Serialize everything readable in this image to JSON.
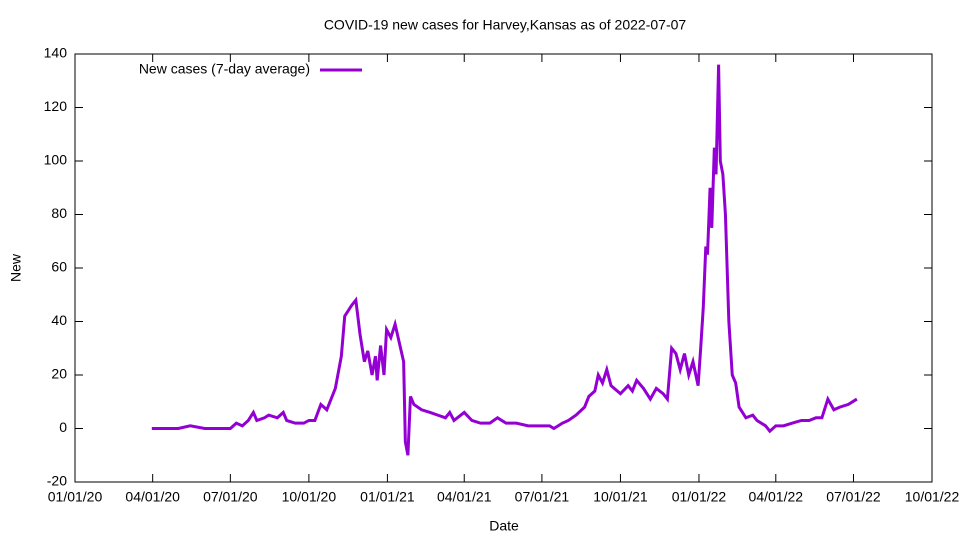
{
  "chart_data": {
    "type": "line",
    "title": "COVID-19 new cases for Harvey,Kansas as of 2022-07-07",
    "x_label": "Date",
    "y_label": "New",
    "legend": "top-left",
    "xlim": [
      "2020-01-01",
      "2022-10-01"
    ],
    "xticks": [
      {
        "value": "2020-01-01",
        "label": "01/01/20"
      },
      {
        "value": "2020-04-01",
        "label": "04/01/20"
      },
      {
        "value": "2020-07-01",
        "label": "07/01/20"
      },
      {
        "value": "2020-10-01",
        "label": "10/01/20"
      },
      {
        "value": "2021-01-01",
        "label": "01/01/21"
      },
      {
        "value": "2021-04-01",
        "label": "04/01/21"
      },
      {
        "value": "2021-07-01",
        "label": "07/01/21"
      },
      {
        "value": "2021-10-01",
        "label": "10/01/21"
      },
      {
        "value": "2022-01-01",
        "label": "01/01/22"
      },
      {
        "value": "2022-04-01",
        "label": "04/01/22"
      },
      {
        "value": "2022-07-01",
        "label": "07/01/22"
      },
      {
        "value": "2022-10-01",
        "label": "10/01/22"
      }
    ],
    "ylim": [
      -20,
      140
    ],
    "yticks": [
      -20,
      0,
      20,
      40,
      60,
      80,
      100,
      120,
      140
    ],
    "x": [
      "2020-03-31",
      "2020-04-15",
      "2020-05-01",
      "2020-05-15",
      "2020-06-01",
      "2020-06-15",
      "2020-07-01",
      "2020-07-08",
      "2020-07-15",
      "2020-07-22",
      "2020-07-28",
      "2020-08-01",
      "2020-08-10",
      "2020-08-15",
      "2020-08-25",
      "2020-09-01",
      "2020-09-05",
      "2020-09-15",
      "2020-09-25",
      "2020-10-01",
      "2020-10-08",
      "2020-10-15",
      "2020-10-22",
      "2020-11-01",
      "2020-11-08",
      "2020-11-12",
      "2020-11-20",
      "2020-11-25",
      "2020-11-30",
      "2020-12-05",
      "2020-12-09",
      "2020-12-14",
      "2020-12-18",
      "2020-12-20",
      "2020-12-24",
      "2020-12-28",
      "2020-12-31",
      "2021-01-05",
      "2021-01-10",
      "2021-01-15",
      "2021-01-20",
      "2021-01-22",
      "2021-01-25",
      "2021-01-28",
      "2021-02-01",
      "2021-02-10",
      "2021-02-20",
      "2021-03-01",
      "2021-03-10",
      "2021-03-15",
      "2021-03-20",
      "2021-04-01",
      "2021-04-10",
      "2021-04-20",
      "2021-05-01",
      "2021-05-10",
      "2021-05-20",
      "2021-06-01",
      "2021-06-15",
      "2021-07-01",
      "2021-07-10",
      "2021-07-15",
      "2021-07-25",
      "2021-08-01",
      "2021-08-10",
      "2021-08-20",
      "2021-08-25",
      "2021-09-01",
      "2021-09-05",
      "2021-09-10",
      "2021-09-15",
      "2021-09-20",
      "2021-10-01",
      "2021-10-10",
      "2021-10-15",
      "2021-10-20",
      "2021-10-28",
      "2021-11-05",
      "2021-11-12",
      "2021-11-20",
      "2021-11-25",
      "2021-11-30",
      "2021-12-05",
      "2021-12-10",
      "2021-12-15",
      "2021-12-20",
      "2021-12-25",
      "2021-12-31",
      "2022-01-03",
      "2022-01-06",
      "2022-01-09",
      "2022-01-11",
      "2022-01-14",
      "2022-01-16",
      "2022-01-19",
      "2022-01-21",
      "2022-01-24",
      "2022-01-26",
      "2022-01-29",
      "2022-02-01",
      "2022-02-05",
      "2022-02-09",
      "2022-02-13",
      "2022-02-17",
      "2022-02-25",
      "2022-03-05",
      "2022-03-10",
      "2022-03-20",
      "2022-03-25",
      "2022-04-01",
      "2022-04-10",
      "2022-04-20",
      "2022-05-01",
      "2022-05-10",
      "2022-05-18",
      "2022-05-25",
      "2022-06-01",
      "2022-06-08",
      "2022-06-15",
      "2022-06-25",
      "2022-07-05"
    ],
    "series": [
      {
        "name": "New cases (7-day average)",
        "color": "#9400d3",
        "values": [
          0,
          0,
          0,
          1,
          0,
          0,
          0,
          2,
          1,
          3,
          6,
          3,
          4,
          5,
          4,
          6,
          3,
          2,
          2,
          3,
          3,
          9,
          7,
          15,
          27,
          42,
          46,
          48,
          35,
          25,
          29,
          20,
          27,
          18,
          31,
          20,
          37,
          34,
          39,
          32,
          25,
          -5,
          -10,
          12,
          9,
          7,
          6,
          5,
          4,
          6,
          3,
          6,
          3,
          2,
          2,
          4,
          2,
          2,
          1,
          1,
          1,
          0,
          2,
          3,
          5,
          8,
          12,
          14,
          20,
          17,
          22,
          16,
          13,
          16,
          14,
          18,
          15,
          11,
          15,
          13,
          11,
          30,
          28,
          22,
          28,
          20,
          25,
          16,
          30,
          45,
          68,
          65,
          90,
          75,
          105,
          95,
          136,
          100,
          95,
          80,
          40,
          20,
          17,
          8,
          4,
          5,
          3,
          1,
          -1,
          1,
          1,
          2,
          3,
          3,
          4,
          4,
          11,
          7,
          8,
          9,
          11
        ]
      }
    ]
  }
}
